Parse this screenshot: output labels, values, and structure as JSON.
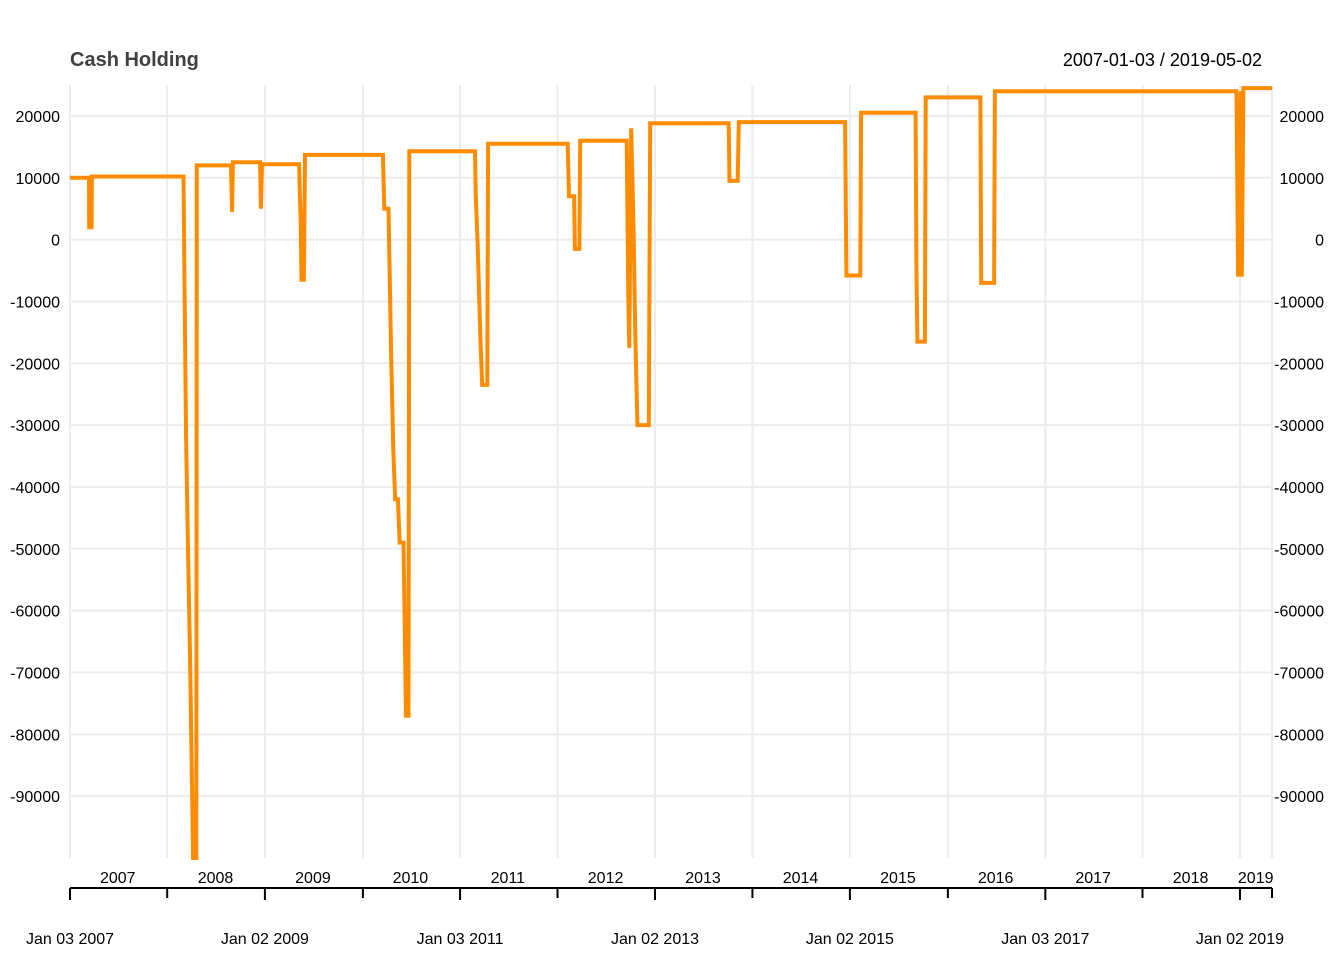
{
  "chart_data": {
    "type": "line",
    "title": "Cash Holding",
    "date_range_label": "2007-01-03 / 2019-05-02",
    "x_range": [
      "2007-01-03",
      "2019-05-02"
    ],
    "ylim": [
      -100000,
      25000
    ],
    "y_ticks": [
      20000,
      10000,
      0,
      -10000,
      -20000,
      -30000,
      -40000,
      -50000,
      -60000,
      -70000,
      -80000,
      -90000
    ],
    "y_tick_labels": [
      "20000",
      "10000",
      "0",
      "-10000",
      "-20000",
      "-30000",
      "-40000",
      "-50000",
      "-60000",
      "-70000",
      "-80000",
      "-90000"
    ],
    "year_labels": [
      {
        "label": "2007",
        "date": "2007-07-01"
      },
      {
        "label": "2008",
        "date": "2008-07-01"
      },
      {
        "label": "2009",
        "date": "2009-07-01"
      },
      {
        "label": "2010",
        "date": "2010-07-01"
      },
      {
        "label": "2011",
        "date": "2011-07-01"
      },
      {
        "label": "2012",
        "date": "2012-07-01"
      },
      {
        "label": "2013",
        "date": "2013-07-01"
      },
      {
        "label": "2014",
        "date": "2014-07-01"
      },
      {
        "label": "2015",
        "date": "2015-07-01"
      },
      {
        "label": "2016",
        "date": "2016-07-01"
      },
      {
        "label": "2017",
        "date": "2017-07-01"
      },
      {
        "label": "2018",
        "date": "2018-07-01"
      },
      {
        "label": "2019",
        "date": "2019-03-02"
      }
    ],
    "major_ticks": [
      {
        "label": "Jan 03 2007",
        "date": "2007-01-03"
      },
      {
        "label": "Jan 02 2009",
        "date": "2009-01-02"
      },
      {
        "label": "Jan 03 2011",
        "date": "2011-01-03"
      },
      {
        "label": "Jan 02 2013",
        "date": "2013-01-02"
      },
      {
        "label": "Jan 02 2015",
        "date": "2015-01-02"
      },
      {
        "label": "Jan 03 2017",
        "date": "2017-01-03"
      },
      {
        "label": "Jan 02 2019",
        "date": "2019-01-02"
      }
    ],
    "minor_ticks": [
      "2008-01-02",
      "2010-01-04",
      "2012-01-03",
      "2014-01-02",
      "2016-01-04",
      "2018-01-02",
      "2019-05-02"
    ],
    "grid": true,
    "series": [
      {
        "color": "#ff8c00",
        "step": true,
        "points": [
          [
            "2007-01-03",
            10000
          ],
          [
            "2007-03-15",
            10000
          ],
          [
            "2007-03-16",
            2000
          ],
          [
            "2007-03-25",
            2000
          ],
          [
            "2007-03-26",
            10200
          ],
          [
            "2008-03-03",
            10200
          ],
          [
            "2008-03-07",
            -7000
          ],
          [
            "2008-03-13",
            -32000
          ],
          [
            "2008-03-20",
            -50000
          ],
          [
            "2008-03-27",
            -66000
          ],
          [
            "2008-04-02",
            -83000
          ],
          [
            "2008-04-08",
            -100000
          ],
          [
            "2008-04-20",
            -100000
          ],
          [
            "2008-04-22",
            12000
          ],
          [
            "2008-08-28",
            12000
          ],
          [
            "2008-09-01",
            4500
          ],
          [
            "2008-09-04",
            12500
          ],
          [
            "2008-12-15",
            12500
          ],
          [
            "2008-12-18",
            5000
          ],
          [
            "2008-12-22",
            12200
          ],
          [
            "2009-05-10",
            12200
          ],
          [
            "2009-05-13",
            7000
          ],
          [
            "2009-05-16",
            3000
          ],
          [
            "2009-05-19",
            -6500
          ],
          [
            "2009-05-28",
            -6500
          ],
          [
            "2009-06-01",
            13700
          ],
          [
            "2010-03-20",
            13700
          ],
          [
            "2010-03-25",
            5000
          ],
          [
            "2010-04-10",
            5000
          ],
          [
            "2010-04-20",
            -19000
          ],
          [
            "2010-04-28",
            -34000
          ],
          [
            "2010-05-05",
            -42000
          ],
          [
            "2010-05-15",
            -42000
          ],
          [
            "2010-05-22",
            -49000
          ],
          [
            "2010-06-05",
            -49000
          ],
          [
            "2010-06-10",
            -63000
          ],
          [
            "2010-06-14",
            -77000
          ],
          [
            "2010-06-24",
            -77000
          ],
          [
            "2010-06-27",
            14300
          ],
          [
            "2011-02-28",
            14300
          ],
          [
            "2011-03-03",
            7000
          ],
          [
            "2011-03-10",
            -1000
          ],
          [
            "2011-03-20",
            -16000
          ],
          [
            "2011-03-27",
            -23500
          ],
          [
            "2011-04-15",
            -23500
          ],
          [
            "2011-04-18",
            15500
          ],
          [
            "2012-02-10",
            15500
          ],
          [
            "2012-02-15",
            7000
          ],
          [
            "2012-03-05",
            7000
          ],
          [
            "2012-03-08",
            -1500
          ],
          [
            "2012-03-25",
            -1500
          ],
          [
            "2012-03-28",
            16000
          ],
          [
            "2012-09-18",
            16000
          ],
          [
            "2012-09-24",
            -9000
          ],
          [
            "2012-09-28",
            -17500
          ],
          [
            "2012-10-05",
            18000
          ],
          [
            "2012-10-14",
            1500
          ],
          [
            "2012-10-20",
            -14500
          ],
          [
            "2012-10-28",
            -30000
          ],
          [
            "2012-12-10",
            -30000
          ],
          [
            "2012-12-15",
            18800
          ],
          [
            "2013-10-05",
            18800
          ],
          [
            "2013-10-08",
            9500
          ],
          [
            "2013-11-08",
            9500
          ],
          [
            "2013-11-12",
            19000
          ],
          [
            "2014-12-15",
            19000
          ],
          [
            "2014-12-20",
            -5800
          ],
          [
            "2015-02-10",
            -5800
          ],
          [
            "2015-02-13",
            20500
          ],
          [
            "2015-09-05",
            20500
          ],
          [
            "2015-09-08",
            -4000
          ],
          [
            "2015-09-12",
            -16500
          ],
          [
            "2015-10-10",
            -16500
          ],
          [
            "2015-10-13",
            23000
          ],
          [
            "2016-05-05",
            23000
          ],
          [
            "2016-05-08",
            -7000
          ],
          [
            "2016-06-25",
            -7000
          ],
          [
            "2016-06-28",
            24000
          ],
          [
            "2018-12-20",
            24000
          ],
          [
            "2018-12-26",
            -6000
          ],
          [
            "2019-01-05",
            24000
          ],
          [
            "2019-01-09",
            -6000
          ],
          [
            "2019-01-15",
            24500
          ],
          [
            "2019-05-02",
            24500
          ]
        ]
      }
    ]
  }
}
